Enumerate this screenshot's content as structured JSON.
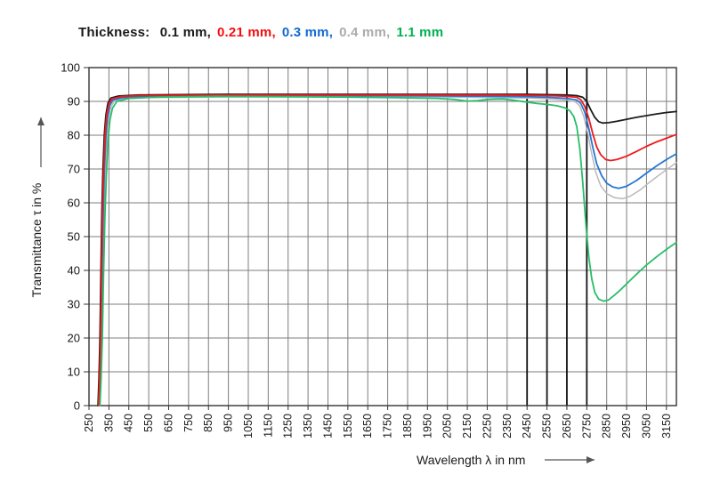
{
  "title": {
    "prefix": "Thickness:",
    "series_labels": [
      {
        "text": "0.1 mm,",
        "color": "#1a1a1a"
      },
      {
        "text": "0.21 mm,",
        "color": "#f40e12"
      },
      {
        "text": "0.3 mm,",
        "color": "#1269d3"
      },
      {
        "text": "0.4 mm,",
        "color": "#ababab"
      },
      {
        "text": "1.1 mm",
        "color": "#00b050"
      }
    ]
  },
  "chart_data": {
    "type": "line",
    "title": "Thickness: 0.1 mm, 0.21 mm, 0.3 mm, 0.4 mm, 1.1 mm",
    "xlabel": "Wavelength λ in nm",
    "ylabel": "Transmittance τ in %",
    "xlim": [
      250,
      3200
    ],
    "ylim": [
      0,
      100
    ],
    "grid": true,
    "legend_position": "top-title",
    "x_ticks": [
      250,
      350,
      450,
      550,
      650,
      750,
      850,
      950,
      1050,
      1150,
      1250,
      1350,
      1450,
      1550,
      1650,
      1750,
      1850,
      1950,
      2050,
      2150,
      2250,
      2350,
      2450,
      2550,
      2650,
      2750,
      2850,
      2950,
      3050,
      3150
    ],
    "y_ticks": [
      0,
      10,
      20,
      30,
      40,
      50,
      60,
      70,
      80,
      90,
      100
    ],
    "dark_x_gridlines": [
      2450,
      2550,
      2650,
      2750
    ],
    "colors": {
      "gridline": "#7d7d7d",
      "dark_gridline": "#141414",
      "axis": "#333333",
      "tick_text": "#1a1a1a"
    },
    "series": [
      {
        "name": "0.1 mm",
        "color": "#1c1c1c",
        "points": [
          [
            295,
            0
          ],
          [
            300,
            8
          ],
          [
            305,
            20
          ],
          [
            310,
            40
          ],
          [
            315,
            58
          ],
          [
            320,
            70
          ],
          [
            327,
            80
          ],
          [
            335,
            86
          ],
          [
            345,
            89.5
          ],
          [
            360,
            91
          ],
          [
            400,
            91.6
          ],
          [
            500,
            91.9
          ],
          [
            700,
            92
          ],
          [
            1000,
            92.1
          ],
          [
            1300,
            92.1
          ],
          [
            1600,
            92.1
          ],
          [
            1900,
            92.1
          ],
          [
            2100,
            92.1
          ],
          [
            2300,
            92.1
          ],
          [
            2450,
            92.1
          ],
          [
            2550,
            92
          ],
          [
            2650,
            91.9
          ],
          [
            2700,
            91.7
          ],
          [
            2730,
            91.2
          ],
          [
            2750,
            90
          ],
          [
            2770,
            87.5
          ],
          [
            2790,
            85.3
          ],
          [
            2810,
            84
          ],
          [
            2830,
            83.6
          ],
          [
            2860,
            83.7
          ],
          [
            2900,
            84.1
          ],
          [
            2950,
            84.7
          ],
          [
            3000,
            85.3
          ],
          [
            3050,
            85.8
          ],
          [
            3100,
            86.3
          ],
          [
            3150,
            86.7
          ],
          [
            3200,
            87
          ]
        ]
      },
      {
        "name": "0.21 mm",
        "color": "#ef1a1d",
        "points": [
          [
            298,
            0
          ],
          [
            303,
            8
          ],
          [
            308,
            20
          ],
          [
            313,
            40
          ],
          [
            318,
            58
          ],
          [
            324,
            70
          ],
          [
            331,
            80
          ],
          [
            339,
            86
          ],
          [
            350,
            89.3
          ],
          [
            365,
            90.8
          ],
          [
            410,
            91.4
          ],
          [
            500,
            91.7
          ],
          [
            1000,
            91.9
          ],
          [
            1500,
            91.9
          ],
          [
            2000,
            91.9
          ],
          [
            2300,
            91.9
          ],
          [
            2450,
            91.8
          ],
          [
            2550,
            91.7
          ],
          [
            2650,
            91.5
          ],
          [
            2700,
            91.2
          ],
          [
            2720,
            90.5
          ],
          [
            2740,
            88.5
          ],
          [
            2760,
            85
          ],
          [
            2780,
            80.5
          ],
          [
            2800,
            76.5
          ],
          [
            2820,
            74.2
          ],
          [
            2845,
            72.8
          ],
          [
            2870,
            72.5
          ],
          [
            2900,
            72.8
          ],
          [
            2950,
            73.8
          ],
          [
            3000,
            75.2
          ],
          [
            3050,
            76.7
          ],
          [
            3100,
            78
          ],
          [
            3150,
            79.1
          ],
          [
            3200,
            80.2
          ]
        ]
      },
      {
        "name": "0.3 mm",
        "color": "#2776d2",
        "points": [
          [
            300,
            0
          ],
          [
            305,
            8
          ],
          [
            310,
            20
          ],
          [
            315,
            38
          ],
          [
            321,
            56
          ],
          [
            327,
            69
          ],
          [
            334,
            79
          ],
          [
            342,
            85
          ],
          [
            354,
            88.8
          ],
          [
            370,
            90.4
          ],
          [
            420,
            91.1
          ],
          [
            520,
            91.4
          ],
          [
            1000,
            91.6
          ],
          [
            1500,
            91.7
          ],
          [
            2000,
            91.6
          ],
          [
            2300,
            91.5
          ],
          [
            2450,
            91.4
          ],
          [
            2550,
            91.2
          ],
          [
            2650,
            90.9
          ],
          [
            2700,
            90.4
          ],
          [
            2720,
            89.4
          ],
          [
            2740,
            86.8
          ],
          [
            2760,
            82
          ],
          [
            2780,
            76.5
          ],
          [
            2800,
            71.5
          ],
          [
            2825,
            68
          ],
          [
            2850,
            65.8
          ],
          [
            2880,
            64.7
          ],
          [
            2910,
            64.3
          ],
          [
            2950,
            64.9
          ],
          [
            3000,
            66.6
          ],
          [
            3050,
            68.8
          ],
          [
            3100,
            70.9
          ],
          [
            3150,
            72.8
          ],
          [
            3200,
            74.5
          ]
        ]
      },
      {
        "name": "0.4 mm",
        "color": "#b9b9b9",
        "points": [
          [
            301,
            0
          ],
          [
            306,
            8
          ],
          [
            311,
            18
          ],
          [
            317,
            36
          ],
          [
            323,
            54
          ],
          [
            330,
            67
          ],
          [
            337,
            77
          ],
          [
            346,
            84
          ],
          [
            358,
            88
          ],
          [
            375,
            90
          ],
          [
            430,
            90.8
          ],
          [
            540,
            91.1
          ],
          [
            1000,
            91.3
          ],
          [
            1500,
            91.4
          ],
          [
            2000,
            91.3
          ],
          [
            2300,
            91.1
          ],
          [
            2450,
            91
          ],
          [
            2550,
            90.8
          ],
          [
            2650,
            90.4
          ],
          [
            2695,
            89.8
          ],
          [
            2715,
            88.6
          ],
          [
            2735,
            85.5
          ],
          [
            2755,
            80.5
          ],
          [
            2775,
            74.5
          ],
          [
            2795,
            69
          ],
          [
            2820,
            65
          ],
          [
            2850,
            62.7
          ],
          [
            2890,
            61.5
          ],
          [
            2930,
            61.2
          ],
          [
            2970,
            62
          ],
          [
            3020,
            63.9
          ],
          [
            3070,
            66.3
          ],
          [
            3120,
            68.5
          ],
          [
            3160,
            70.2
          ],
          [
            3200,
            71.9
          ]
        ]
      },
      {
        "name": "1.1 mm",
        "color": "#2abd68",
        "points": [
          [
            305,
            0
          ],
          [
            311,
            8
          ],
          [
            317,
            20
          ],
          [
            323,
            38
          ],
          [
            330,
            56
          ],
          [
            337,
            68
          ],
          [
            345,
            78
          ],
          [
            355,
            84.5
          ],
          [
            368,
            88
          ],
          [
            390,
            90
          ],
          [
            450,
            90.9
          ],
          [
            600,
            91.3
          ],
          [
            900,
            91.5
          ],
          [
            1200,
            91.4
          ],
          [
            1500,
            91.3
          ],
          [
            1800,
            91.1
          ],
          [
            2000,
            90.9
          ],
          [
            2080,
            90.6
          ],
          [
            2150,
            90.1
          ],
          [
            2200,
            90.2
          ],
          [
            2260,
            90.6
          ],
          [
            2330,
            90.7
          ],
          [
            2400,
            90.2
          ],
          [
            2450,
            89.8
          ],
          [
            2500,
            89.4
          ],
          [
            2550,
            89.1
          ],
          [
            2600,
            88.7
          ],
          [
            2640,
            88.1
          ],
          [
            2665,
            87.2
          ],
          [
            2685,
            85.5
          ],
          [
            2700,
            82.5
          ],
          [
            2715,
            76
          ],
          [
            2730,
            66
          ],
          [
            2745,
            54
          ],
          [
            2760,
            44
          ],
          [
            2775,
            37.5
          ],
          [
            2790,
            33.5
          ],
          [
            2810,
            31.5
          ],
          [
            2835,
            30.9
          ],
          [
            2860,
            31.3
          ],
          [
            2890,
            32.7
          ],
          [
            2920,
            34.3
          ],
          [
            2960,
            36.6
          ],
          [
            3000,
            38.9
          ],
          [
            3050,
            41.6
          ],
          [
            3100,
            44
          ],
          [
            3150,
            46.2
          ],
          [
            3200,
            48.3
          ]
        ]
      }
    ]
  }
}
